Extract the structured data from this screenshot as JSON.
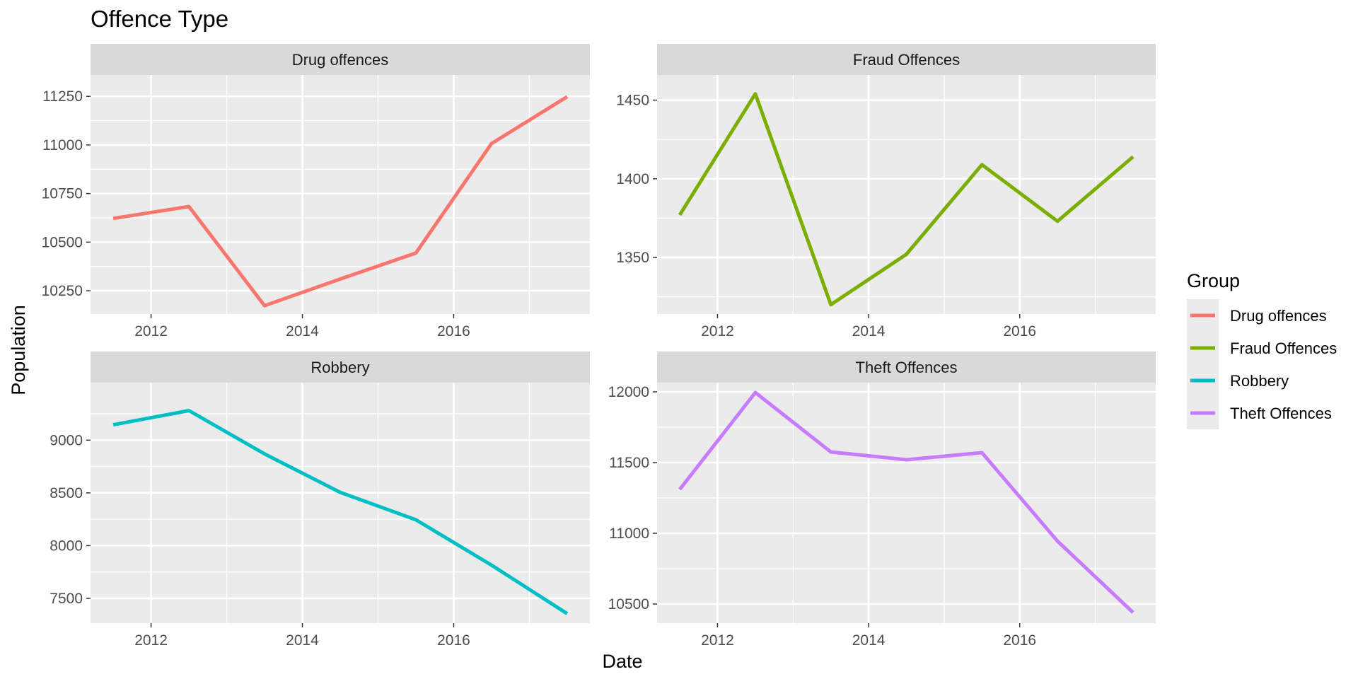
{
  "chart_data": {
    "type": "line",
    "title": "Offence Type",
    "xlabel": "Date",
    "ylabel": "Population",
    "x_tick_labels": [
      "2012",
      "2014",
      "2016"
    ],
    "grid": true,
    "legend": {
      "title": "Group",
      "position": "right"
    },
    "panels": [
      {
        "name": "Drug offences",
        "color": "#F8766D",
        "x": [
          2011.5,
          2012.5,
          2013.5,
          2014.5,
          2015.5,
          2016.5,
          2017.5
        ],
        "values": [
          10622,
          10683,
          10173,
          10310,
          10444,
          11007,
          11248
        ],
        "ylim": [
          10130,
          11360
        ],
        "yticks": [
          10250,
          10500,
          10750,
          11000,
          11250
        ]
      },
      {
        "name": "Fraud Offences",
        "color": "#7CAE00",
        "x": [
          2011.5,
          2012.5,
          2013.5,
          2014.5,
          2015.5,
          2016.5,
          2017.5
        ],
        "values": [
          1377,
          1454,
          1320,
          1352,
          1409,
          1373,
          1414
        ],
        "ylim": [
          1314,
          1466
        ],
        "yticks": [
          1350,
          1400,
          1450
        ]
      },
      {
        "name": "Robbery",
        "color": "#00BFC4",
        "x": [
          2011.5,
          2012.5,
          2013.5,
          2014.5,
          2015.5,
          2016.5,
          2017.5
        ],
        "values": [
          9145,
          9280,
          8870,
          8505,
          8245,
          7815,
          7355
        ],
        "ylim": [
          7265,
          9545
        ],
        "yticks": [
          7500,
          8000,
          8500,
          9000
        ]
      },
      {
        "name": "Theft Offences",
        "color": "#C77CFF",
        "x": [
          2011.5,
          2012.5,
          2013.5,
          2014.5,
          2015.5,
          2016.5,
          2017.5
        ],
        "values": [
          11310,
          11995,
          11575,
          11520,
          11570,
          10945,
          10440
        ],
        "ylim": [
          10365,
          12065
        ],
        "yticks": [
          10500,
          11000,
          11500,
          12000
        ]
      }
    ],
    "xlim": [
      2011.2,
      2017.8
    ]
  }
}
